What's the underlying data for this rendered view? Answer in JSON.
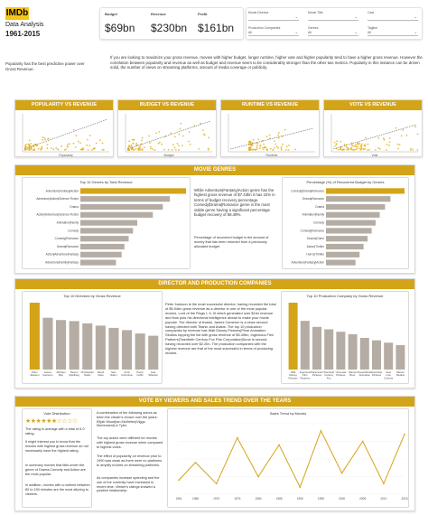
{
  "brand": {
    "logo": "IMDb",
    "title": "Data Analysis",
    "years": "1961-2015",
    "accent": "#d4a418",
    "logo_color": "#f5c518",
    "bar_grey": "#b5aca4"
  },
  "kpis": [
    {
      "label": "Budget",
      "value": "$69bn"
    },
    {
      "label": "Revenue",
      "value": "$230bn"
    },
    {
      "label": "Profit",
      "value": "$161bn"
    }
  ],
  "filters": [
    {
      "label": "Movie Director",
      "value": ""
    },
    {
      "label": "Movie Title",
      "value": ""
    },
    {
      "label": "Cast",
      "value": ""
    },
    {
      "label": "Production Companies",
      "value": "All"
    },
    {
      "label": "Genres",
      "value": "All"
    },
    {
      "label": "Tagline",
      "value": "All"
    }
  ],
  "intro": {
    "left": "Popularity has the best predictive power over Gross Revenue.",
    "right": "If you are looking to maximize your gross revenue, movies with higher budget, longer runtime, higher vote and higher popularity tend to have a higher gross revenue. However the correlation between popularity and revenue as well as budget and revenue seem to be considerably stronger than the other two metrics. Popularity in this instance can be driven solid, the number of views on streaming platforms, amount of media coverage or publicity."
  },
  "scatters": [
    {
      "title": "POPULARITY VS REVENUE",
      "xlabel": "Popularity"
    },
    {
      "title": "BUDGET VS REVENUE",
      "xlabel": "Budget"
    },
    {
      "title": "RUNTIME VS REVENUE",
      "xlabel": "Runtime"
    },
    {
      "title": "VOTE VS REVENUE",
      "xlabel": "Vote"
    }
  ],
  "genres": {
    "title": "MOVIE GENRES",
    "left_title": "Top 10 Genres by Total Revenue",
    "text": "While Adventure|Fantasy|Action genre has the highest gross revenue of $7.43bn it has 22% in terms of budget recovery percentage. Comedy|Drama|Romance genre is the most viable genre having a significant percentage budget recovery of 58.49%.",
    "note": "Percentage of recovered budget is the amount of money that has been returned from a previously allocated budget.",
    "right_title": "Percentage (%) of Recovered Budget by Genres"
  },
  "directors": {
    "title": "DIRECTOR AND PRODUCTION COMPANIES",
    "left_title": "Top 10 Directors by Gross Revenue",
    "text": "Peter Jackson is the most successful director, having recorded the total of $5.94bn gross revenue as a director in one of the most popular movies. Lord of the Rings I, II, III which generated over $1bn revenue and thus puts his directorial intelligence ahead to make your movie popular. The director of Avatar, James Cameron is a close second having directed both Titanic and Avatar. The top 10 production companies by revenue has Walt Disney Pictures|Pixar Animation Studios topping the list with gross revenue of $5.49bn, Ingenious Film Partners|Twentieth Century Fox Film Corporation|Dune is second, having recorded over $2.2bn. The production companies with the highest revenue are that of the most successful in terms of producing movies.",
    "right_title": "Top 10 Production Company by Gross Revenue"
  },
  "votes": {
    "title": "VOTE BY VIEWERS AND SALES TREND OVER THE YEARS",
    "left_title": "Vote Distribution",
    "left_text": [
      "The rating is average with a total of 6.0 rating.",
      "It might interest you to know that the movies with highest gross revenue do not necessarily have the highest rating.",
      "In summary movies that falls under the genre of Drama,Comedy and Action are the most popular.",
      "In addition, movies with a runtime between 80 to 150 minutes are the most alluring to viewers."
    ],
    "mid_text": [
      "A combination of the following actors as been the viewer's choice over the years: Elijah Wood|Ian McKellen|Viggo Mortensen|Liv Tyler.",
      "The top actors were different for movies with highest gross revenue when compared to highest votes.",
      "The effect of popularity on revenue prior to 1990 was weak as there were no platforms to amplify movies on streaming platforms.",
      "As companies increase spending and the use of the currently have increased in recent time. Viewer's ratings showed a positive relationship."
    ],
    "chart_title": "Sales Trend by Movies"
  },
  "chart_data": [
    {
      "type": "bar",
      "title": "Top 10 Genres by Total Revenue",
      "orientation": "horizontal",
      "categories": [
        "Adventure|Fantasy|Action",
        "Adventure|Action|Science Fiction",
        "Drama",
        "Action|Adventure|Science Fiction",
        "Animation|Family",
        "Comedy",
        "Comedy|Romance",
        "Drama|Romance",
        "Action|Adventure|Fantasy",
        "Adventure|Family|Fantasy"
      ],
      "values": [
        7.43,
        6.3,
        5.8,
        5.1,
        4.0,
        3.7,
        3.4,
        3.1,
        2.9,
        2.5
      ],
      "highlight": [
        0
      ]
    },
    {
      "type": "bar",
      "title": "Percentage (%) of Recovered Budget by Genres",
      "orientation": "horizontal",
      "categories": [
        "Comedy|Drama|Romance",
        "Drama|Romance",
        "Drama",
        "Animation|Family",
        "Comedy",
        "Comedy|Romance",
        "Drama|Crime",
        "Action|Thriller",
        "Horror|Thriller",
        "Adventure|Fantasy|Action"
      ],
      "values": [
        58.49,
        48,
        44,
        40,
        37,
        34,
        31,
        28,
        25,
        22
      ],
      "highlight": [
        0
      ]
    },
    {
      "type": "bar",
      "title": "Top 10 Directors by Gross Revenue",
      "orientation": "vertical",
      "categories": [
        "Peter Jackson",
        "James Cameron",
        "Michael Bay",
        "Steven Spielberg",
        "Christopher Nolan",
        "David Yates",
        "Sam Raimi",
        "Chris Columbus",
        "Pierre Coffin",
        "Joss Whedon"
      ],
      "values": [
        5.94,
        4.6,
        4.4,
        4.3,
        4.1,
        3.9,
        3.7,
        3.5,
        3.2,
        3.0
      ],
      "highlight": [
        0
      ]
    },
    {
      "type": "bar",
      "title": "Top 10 Production Company by Gross Revenue",
      "orientation": "vertical",
      "categories": [
        "Walt Disney Pictures|Pixar",
        "Ingenious Film Partners",
        "Paramount Pictures",
        "Twentieth Century Fox",
        "Universal Pictures",
        "Warner Bros.",
        "DreamWorks Animation",
        "Columbia Pictures",
        "New Line Cinema",
        "Marvel Studios"
      ],
      "values": [
        5.49,
        4.0,
        3.5,
        3.3,
        3.1,
        2.9,
        2.6,
        2.4,
        2.2,
        2.0
      ],
      "highlight": [
        0
      ]
    },
    {
      "type": "line",
      "title": "Sales Trend by Movies",
      "x": [
        1961,
        1965,
        1970,
        1975,
        1980,
        1985,
        1990,
        1995,
        2000,
        2005,
        2010,
        2015
      ],
      "values": [
        0.4,
        0.9,
        0.3,
        1.6,
        0.5,
        1.4,
        0.2,
        1.8,
        0.6,
        1.5,
        0.3,
        1.7
      ]
    }
  ]
}
